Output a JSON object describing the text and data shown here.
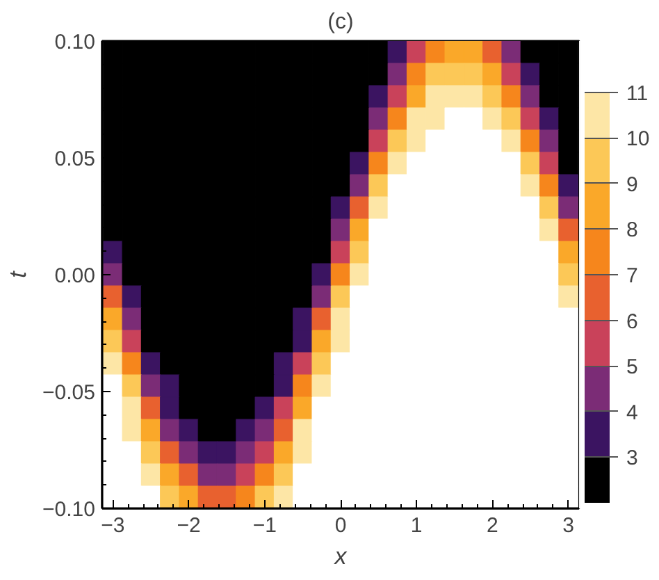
{
  "chart_data": {
    "type": "heatmap",
    "title": "(c)",
    "xlabel": "x",
    "ylabel": "t",
    "x": [
      -3,
      -2.75,
      -2.5,
      -2.25,
      -2,
      -1.75,
      -1.5,
      -1.25,
      -1,
      -0.75,
      -0.5,
      -0.25,
      0,
      0.25,
      0.5,
      0.75,
      1,
      1.25,
      1.5,
      1.75,
      2,
      2.25,
      2.5,
      2.75,
      3
    ],
    "xlim": [
      -3.1416,
      3.1416
    ],
    "ylim": [
      -0.1,
      0.1
    ],
    "xticks": [
      {
        "value": -3,
        "label": "−3"
      },
      {
        "value": -2,
        "label": "−2"
      },
      {
        "value": -1,
        "label": "−1"
      },
      0,
      1,
      2,
      3
    ],
    "yticks": [
      {
        "value": -0.1,
        "label": "−0.10"
      },
      {
        "value": -0.05,
        "label": "−0.05"
      },
      {
        "value": 0,
        "label": "0.00"
      },
      {
        "value": 0.05,
        "label": "0.05"
      },
      {
        "value": 0.1,
        "label": "0.10"
      }
    ],
    "clim": [
      2,
      12
    ],
    "cticks": [
      3,
      4,
      5,
      6,
      7,
      8,
      9,
      10,
      11
    ],
    "colors": [
      "#000000",
      "#3b1461",
      "#7b2c76",
      "#c9425a",
      "#e8612f",
      "#f6861c",
      "#faa829",
      "#fcc857",
      "#fde6a6",
      "#ffffff"
    ],
    "grid": false,
    "cells": [
      [
        2.5,
        2.5,
        2.5,
        2.5,
        2.5,
        2.5,
        2.5,
        2.5,
        2.5,
        2.5,
        2.5,
        2.5,
        2.5,
        2.5,
        2.5,
        3.5,
        5.5,
        7.5,
        8.5,
        8.5,
        6.5,
        4.5,
        2.5,
        2.5,
        2.5
      ],
      [
        2.5,
        2.5,
        2.5,
        2.5,
        2.5,
        2.5,
        2.5,
        2.5,
        2.5,
        2.5,
        2.5,
        2.5,
        2.5,
        2.5,
        2.5,
        4.5,
        7.5,
        9.5,
        9.5,
        9.5,
        8.5,
        5.5,
        3.5,
        2.5,
        2.5
      ],
      [
        2.5,
        2.5,
        2.5,
        2.5,
        2.5,
        2.5,
        2.5,
        2.5,
        2.5,
        2.5,
        2.5,
        2.5,
        2.5,
        2.5,
        3.5,
        5.5,
        8.5,
        10.5,
        10.5,
        10.5,
        9.5,
        7.5,
        4.5,
        2.5,
        2.5
      ],
      [
        2.5,
        2.5,
        2.5,
        2.5,
        2.5,
        2.5,
        2.5,
        2.5,
        2.5,
        2.5,
        2.5,
        2.5,
        2.5,
        2.5,
        4.5,
        7.5,
        10.5,
        10.5,
        11.5,
        11.5,
        10.5,
        9.5,
        5.5,
        3.5,
        2.5
      ],
      [
        2.5,
        2.5,
        2.5,
        2.5,
        2.5,
        2.5,
        2.5,
        2.5,
        2.5,
        2.5,
        2.5,
        2.5,
        2.5,
        2.5,
        5.5,
        9.5,
        10.5,
        11.5,
        11.5,
        11.5,
        11.5,
        10.5,
        7.5,
        4.5,
        2.5
      ],
      [
        2.5,
        2.5,
        2.5,
        2.5,
        2.5,
        2.5,
        2.5,
        2.5,
        2.5,
        2.5,
        2.5,
        2.5,
        2.5,
        3.5,
        7.5,
        10.5,
        11.5,
        11.5,
        11.5,
        11.5,
        11.5,
        11.5,
        9.5,
        5.5,
        2.5
      ],
      [
        2.5,
        2.5,
        2.5,
        2.5,
        2.5,
        2.5,
        2.5,
        2.5,
        2.5,
        2.5,
        2.5,
        2.5,
        2.5,
        4.5,
        9.5,
        11.5,
        11.5,
        11.5,
        11.5,
        11.5,
        11.5,
        11.5,
        10.5,
        7.5,
        3.5
      ],
      [
        2.5,
        2.5,
        2.5,
        2.5,
        2.5,
        2.5,
        2.5,
        2.5,
        2.5,
        2.5,
        2.5,
        2.5,
        3.5,
        6.5,
        10.5,
        11.5,
        11.5,
        11.5,
        11.5,
        11.5,
        11.5,
        11.5,
        11.5,
        9.5,
        4.5
      ],
      [
        2.5,
        2.5,
        2.5,
        2.5,
        2.5,
        2.5,
        2.5,
        2.5,
        2.5,
        2.5,
        2.5,
        2.5,
        4.5,
        8.5,
        11.5,
        11.5,
        11.5,
        11.5,
        11.5,
        11.5,
        11.5,
        11.5,
        11.5,
        10.5,
        6.5
      ],
      [
        3.5,
        2.5,
        2.5,
        2.5,
        2.5,
        2.5,
        2.5,
        2.5,
        2.5,
        2.5,
        2.5,
        2.5,
        5.5,
        9.5,
        11.5,
        11.5,
        11.5,
        11.5,
        11.5,
        11.5,
        11.5,
        11.5,
        11.5,
        11.5,
        8.5
      ],
      [
        4.5,
        2.5,
        2.5,
        2.5,
        2.5,
        2.5,
        2.5,
        2.5,
        2.5,
        2.5,
        2.5,
        3.5,
        7.5,
        10.5,
        11.5,
        11.5,
        11.5,
        11.5,
        11.5,
        11.5,
        11.5,
        11.5,
        11.5,
        11.5,
        9.5
      ],
      [
        6.5,
        3.5,
        2.5,
        2.5,
        2.5,
        2.5,
        2.5,
        2.5,
        2.5,
        2.5,
        2.5,
        4.5,
        9.5,
        11.5,
        11.5,
        11.5,
        11.5,
        11.5,
        11.5,
        11.5,
        11.5,
        11.5,
        11.5,
        11.5,
        10.5
      ],
      [
        8.5,
        4.5,
        2.5,
        2.5,
        2.5,
        2.5,
        2.5,
        2.5,
        2.5,
        2.5,
        3.5,
        6.5,
        10.5,
        11.5,
        11.5,
        11.5,
        11.5,
        11.5,
        11.5,
        11.5,
        11.5,
        11.5,
        11.5,
        11.5,
        11.5
      ],
      [
        9.5,
        5.5,
        2.5,
        2.5,
        2.5,
        2.5,
        2.5,
        2.5,
        2.5,
        2.5,
        3.5,
        8.5,
        10.5,
        11.5,
        11.5,
        11.5,
        11.5,
        11.5,
        11.5,
        11.5,
        11.5,
        11.5,
        11.5,
        11.5,
        11.5
      ],
      [
        10.5,
        7.5,
        3.5,
        2.5,
        2.5,
        2.5,
        2.5,
        2.5,
        2.5,
        3.5,
        5.5,
        9.5,
        11.5,
        11.5,
        11.5,
        11.5,
        11.5,
        11.5,
        11.5,
        11.5,
        11.5,
        11.5,
        11.5,
        11.5,
        11.5
      ],
      [
        11.5,
        9.5,
        4.5,
        3.5,
        2.5,
        2.5,
        2.5,
        2.5,
        2.5,
        3.5,
        7.5,
        10.5,
        11.5,
        11.5,
        11.5,
        11.5,
        11.5,
        11.5,
        11.5,
        11.5,
        11.5,
        11.5,
        11.5,
        11.5,
        11.5
      ],
      [
        11.5,
        10.5,
        6.5,
        3.5,
        2.5,
        2.5,
        2.5,
        2.5,
        3.5,
        5.5,
        8.5,
        11.5,
        11.5,
        11.5,
        11.5,
        11.5,
        11.5,
        11.5,
        11.5,
        11.5,
        11.5,
        11.5,
        11.5,
        11.5,
        11.5
      ],
      [
        11.5,
        10.5,
        8.5,
        4.5,
        3.5,
        2.5,
        2.5,
        3.5,
        4.5,
        6.5,
        10.5,
        11.5,
        11.5,
        11.5,
        11.5,
        11.5,
        11.5,
        11.5,
        11.5,
        11.5,
        11.5,
        11.5,
        11.5,
        11.5,
        11.5
      ],
      [
        11.5,
        11.5,
        9.5,
        6.5,
        4.5,
        3.5,
        3.5,
        4.5,
        5.5,
        8.5,
        10.5,
        11.5,
        11.5,
        11.5,
        11.5,
        11.5,
        11.5,
        11.5,
        11.5,
        11.5,
        11.5,
        11.5,
        11.5,
        11.5,
        11.5
      ],
      [
        11.5,
        11.5,
        10.5,
        8.5,
        6.5,
        4.5,
        4.5,
        5.5,
        7.5,
        9.5,
        11.5,
        11.5,
        11.5,
        11.5,
        11.5,
        11.5,
        11.5,
        11.5,
        11.5,
        11.5,
        11.5,
        11.5,
        11.5,
        11.5,
        11.5
      ],
      [
        11.5,
        11.5,
        11.5,
        9.5,
        8.5,
        6.5,
        6.5,
        7.5,
        9.5,
        10.5,
        11.5,
        11.5,
        11.5,
        11.5,
        11.5,
        11.5,
        11.5,
        11.5,
        11.5,
        11.5,
        11.5,
        11.5,
        11.5,
        11.5,
        11.5
      ]
    ]
  }
}
